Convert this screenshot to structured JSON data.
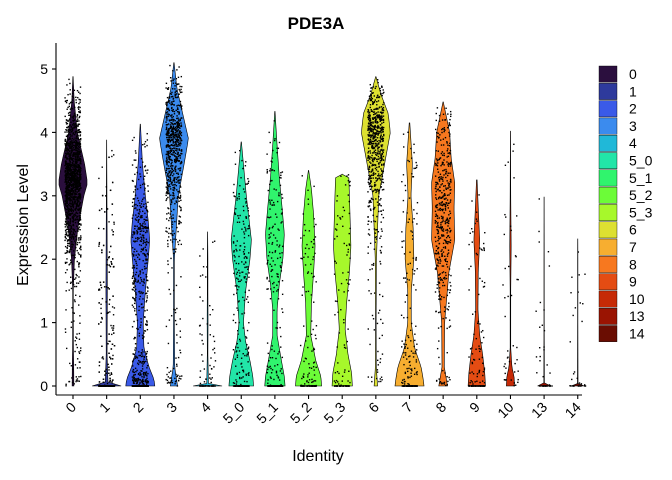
{
  "chart_data": {
    "type": "violin",
    "title": "PDE3A",
    "xlabel": "Identity",
    "ylabel": "Expression Level",
    "ylim": [
      -0.15,
      5.4
    ],
    "yticks": [
      0,
      1,
      2,
      3,
      4,
      5
    ],
    "legend_position": "right",
    "grid": false,
    "categories": [
      "0",
      "1",
      "2",
      "3",
      "4",
      "5_0",
      "5_1",
      "5_2",
      "5_3",
      "6",
      "7",
      "8",
      "9",
      "10",
      "13",
      "14"
    ],
    "colors": [
      "#2b0f3e",
      "#2e3a9c",
      "#3a5ae8",
      "#3b8bee",
      "#20b8d8",
      "#22e5a8",
      "#30f46d",
      "#6cfc38",
      "#a7f82b",
      "#dde031",
      "#f7ae30",
      "#f7781f",
      "#e44c13",
      "#c62a06",
      "#9a1402",
      "#6a0d02"
    ],
    "violins": [
      {
        "density": [
          [
            0,
            0.06
          ],
          [
            0.3,
            0.05
          ],
          [
            0.6,
            0.03
          ],
          [
            1.5,
            0.02
          ],
          [
            2.0,
            0.1
          ],
          [
            2.5,
            0.34
          ],
          [
            3.0,
            0.75
          ],
          [
            3.2,
            1.0
          ],
          [
            3.5,
            0.8
          ],
          [
            4.0,
            0.3
          ],
          [
            4.5,
            0.08
          ],
          [
            4.88,
            0.01
          ]
        ],
        "max": 4.88,
        "points": 1400
      },
      {
        "density": [
          [
            0,
            1.0
          ],
          [
            0.02,
            0.1
          ],
          [
            0.5,
            0.03
          ],
          [
            1.0,
            0.04
          ],
          [
            1.5,
            0.05
          ],
          [
            2.0,
            0.04
          ],
          [
            3.0,
            0.02
          ],
          [
            3.88,
            0.005
          ]
        ],
        "max": 3.88,
        "points": 320
      },
      {
        "density": [
          [
            0,
            1.0
          ],
          [
            0.1,
            0.95
          ],
          [
            0.3,
            0.6
          ],
          [
            0.6,
            0.25
          ],
          [
            1.0,
            0.2
          ],
          [
            1.5,
            0.35
          ],
          [
            2.0,
            0.55
          ],
          [
            2.3,
            0.65
          ],
          [
            2.6,
            0.55
          ],
          [
            3.0,
            0.35
          ],
          [
            3.5,
            0.15
          ],
          [
            4.13,
            0.01
          ]
        ],
        "max": 4.13,
        "points": 800
      },
      {
        "density": [
          [
            0,
            0.25
          ],
          [
            0.3,
            0.05
          ],
          [
            1.0,
            0.03
          ],
          [
            2.0,
            0.03
          ],
          [
            3.0,
            0.3
          ],
          [
            3.5,
            0.7
          ],
          [
            3.9,
            1.0
          ],
          [
            4.3,
            0.6
          ],
          [
            4.7,
            0.2
          ],
          [
            5.1,
            0.01
          ]
        ],
        "max": 5.1,
        "points": 750
      },
      {
        "density": [
          [
            0,
            1.0
          ],
          [
            0.02,
            0.06
          ],
          [
            0.5,
            0.02
          ],
          [
            1.0,
            0.03
          ],
          [
            1.5,
            0.02
          ],
          [
            2.0,
            0.02
          ],
          [
            2.43,
            0.005
          ]
        ],
        "max": 2.43,
        "points": 80
      },
      {
        "density": [
          [
            0,
            0.85
          ],
          [
            0.15,
            0.8
          ],
          [
            0.4,
            0.6
          ],
          [
            0.7,
            0.3
          ],
          [
            1.0,
            0.15
          ],
          [
            1.5,
            0.3
          ],
          [
            2.0,
            0.6
          ],
          [
            2.3,
            0.7
          ],
          [
            2.7,
            0.5
          ],
          [
            3.0,
            0.35
          ],
          [
            3.5,
            0.15
          ],
          [
            3.85,
            0.01
          ]
        ],
        "max": 3.85,
        "points": 300
      },
      {
        "density": [
          [
            0,
            0.7
          ],
          [
            0.15,
            0.65
          ],
          [
            0.4,
            0.45
          ],
          [
            0.8,
            0.15
          ],
          [
            1.2,
            0.15
          ],
          [
            1.6,
            0.3
          ],
          [
            2.0,
            0.55
          ],
          [
            2.4,
            0.65
          ],
          [
            2.8,
            0.5
          ],
          [
            3.3,
            0.3
          ],
          [
            3.8,
            0.15
          ],
          [
            4.33,
            0.01
          ]
        ],
        "max": 4.33,
        "points": 280
      },
      {
        "density": [
          [
            0,
            0.9
          ],
          [
            0.15,
            0.85
          ],
          [
            0.4,
            0.5
          ],
          [
            0.8,
            0.15
          ],
          [
            1.3,
            0.2
          ],
          [
            1.8,
            0.35
          ],
          [
            2.2,
            0.45
          ],
          [
            2.7,
            0.35
          ],
          [
            3.1,
            0.2
          ],
          [
            3.4,
            0.01
          ]
        ],
        "max": 3.4,
        "points": 140
      },
      {
        "density": [
          [
            0,
            0.7
          ],
          [
            0.2,
            0.65
          ],
          [
            0.5,
            0.4
          ],
          [
            0.9,
            0.2
          ],
          [
            1.3,
            0.3
          ],
          [
            1.8,
            0.5
          ],
          [
            2.2,
            0.6
          ],
          [
            2.6,
            0.55
          ],
          [
            3.0,
            0.5
          ],
          [
            3.33,
            0.45
          ],
          [
            3.34,
            0.0
          ]
        ],
        "max": 3.34,
        "points": 120
      },
      {
        "density": [
          [
            0,
            0.12
          ],
          [
            0.3,
            0.03
          ],
          [
            1.0,
            0.02
          ],
          [
            2.0,
            0.04
          ],
          [
            3.0,
            0.2
          ],
          [
            3.5,
            0.6
          ],
          [
            4.0,
            1.0
          ],
          [
            4.3,
            0.85
          ],
          [
            4.6,
            0.35
          ],
          [
            4.88,
            0.01
          ]
        ],
        "max": 4.88,
        "points": 650
      },
      {
        "density": [
          [
            0,
            1.0
          ],
          [
            0.1,
            0.95
          ],
          [
            0.3,
            0.8
          ],
          [
            0.6,
            0.35
          ],
          [
            1.0,
            0.12
          ],
          [
            1.5,
            0.12
          ],
          [
            2.0,
            0.3
          ],
          [
            2.5,
            0.25
          ],
          [
            3.0,
            0.1
          ],
          [
            3.5,
            0.2
          ],
          [
            4.15,
            0.02
          ]
        ],
        "max": 4.15,
        "points": 200
      },
      {
        "density": [
          [
            0,
            0.3
          ],
          [
            0.3,
            0.08
          ],
          [
            1.0,
            0.1
          ],
          [
            1.8,
            0.4
          ],
          [
            2.3,
            0.8
          ],
          [
            2.8,
            0.75
          ],
          [
            3.2,
            0.8
          ],
          [
            3.6,
            0.55
          ],
          [
            4.0,
            0.45
          ],
          [
            4.48,
            0.01
          ]
        ],
        "max": 4.48,
        "points": 450
      },
      {
        "density": [
          [
            0,
            0.6
          ],
          [
            0.2,
            0.55
          ],
          [
            0.5,
            0.4
          ],
          [
            0.8,
            0.2
          ],
          [
            1.2,
            0.08
          ],
          [
            1.8,
            0.1
          ],
          [
            2.3,
            0.2
          ],
          [
            2.7,
            0.12
          ],
          [
            3.25,
            0.02
          ]
        ],
        "max": 3.25,
        "points": 130
      },
      {
        "density": [
          [
            0,
            0.28
          ],
          [
            0.15,
            0.25
          ],
          [
            0.3,
            0.1
          ],
          [
            0.6,
            0.02
          ],
          [
            1.5,
            0.02
          ],
          [
            2.2,
            0.05
          ],
          [
            3.0,
            0.02
          ],
          [
            4.02,
            0.005
          ]
        ],
        "max": 4.02,
        "points": 45
      },
      {
        "density": [
          [
            0,
            0.45
          ],
          [
            0.02,
            0.02
          ],
          [
            1.0,
            0.01
          ],
          [
            2.0,
            0.01
          ],
          [
            2.98,
            0.005
          ]
        ],
        "max": 2.98,
        "points": 40
      },
      {
        "density": [
          [
            0,
            0.45
          ],
          [
            0.02,
            0.02
          ],
          [
            1.0,
            0.01
          ],
          [
            2.0,
            0.01
          ],
          [
            2.32,
            0.005
          ]
        ],
        "max": 2.32,
        "points": 30
      }
    ]
  }
}
